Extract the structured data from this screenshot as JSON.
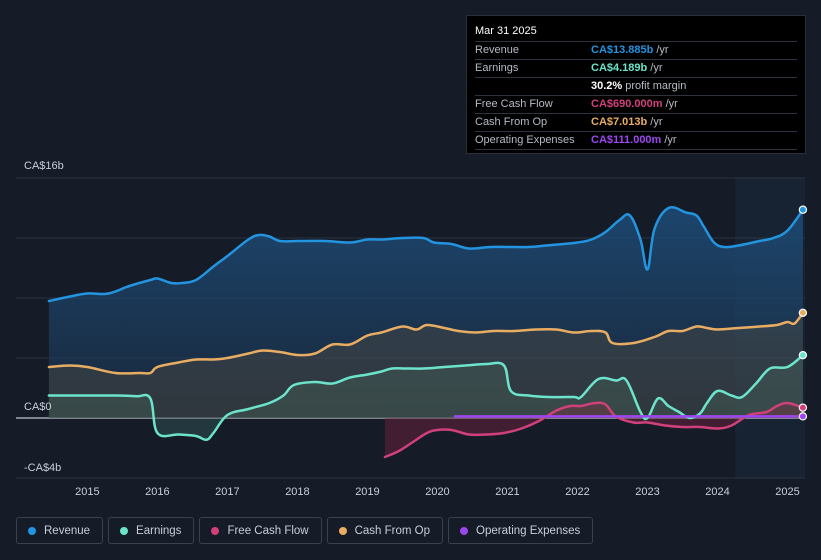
{
  "colors": {
    "background": "#151b27",
    "revenue": "#2394df",
    "earnings": "#6ce4cc",
    "fcf": "#d0407a",
    "cfo": "#e8ad62",
    "opex": "#9d46f0"
  },
  "tooltip": {
    "date": "Mar 31 2025",
    "rows": [
      {
        "label": "Revenue",
        "value": "CA$13.885b",
        "unit": "/yr"
      },
      {
        "label": "Earnings",
        "value": "CA$4.189b",
        "unit": "/yr"
      },
      {
        "label": "",
        "value": "30.2%",
        "unit": "profit margin"
      },
      {
        "label": "Free Cash Flow",
        "value": "CA$690.000m",
        "unit": "/yr"
      },
      {
        "label": "Cash From Op",
        "value": "CA$7.013b",
        "unit": "/yr"
      },
      {
        "label": "Operating Expenses",
        "value": "CA$111.000m",
        "unit": "/yr"
      }
    ]
  },
  "legend": [
    {
      "label": "Revenue",
      "color": "#2394df"
    },
    {
      "label": "Earnings",
      "color": "#6ce4cc"
    },
    {
      "label": "Free Cash Flow",
      "color": "#d0407a"
    },
    {
      "label": "Cash From Op",
      "color": "#e8ad62"
    },
    {
      "label": "Operating Expenses",
      "color": "#9d46f0"
    }
  ],
  "chart_data": {
    "type": "area",
    "unit": "CA$ billions",
    "ylim": [
      -4,
      16
    ],
    "y_tick_labels": [
      {
        "value": 16,
        "label": "CA$16b"
      },
      {
        "value": 0,
        "label": "CA$0"
      },
      {
        "value": -4,
        "label": "-CA$4b"
      }
    ],
    "x_tick_labels": [
      "2015",
      "2016",
      "2017",
      "2018",
      "2019",
      "2020",
      "2021",
      "2022",
      "2023",
      "2024",
      "2025"
    ],
    "x_tick_values": [
      2015,
      2016,
      2017,
      2018,
      2019,
      2020,
      2021,
      2022,
      2023,
      2024,
      2025
    ],
    "xlim": [
      2014.43,
      2025.25
    ],
    "highlight_start": 2024.25,
    "series": [
      {
        "name": "Revenue",
        "key": "revenue",
        "x": [
          2014.45,
          2014.75,
          2015.0,
          2015.3,
          2015.6,
          2015.9,
          2016.0,
          2016.2,
          2016.35,
          2016.55,
          2016.8,
          2017.0,
          2017.3,
          2017.45,
          2017.6,
          2017.75,
          2018.0,
          2018.4,
          2018.75,
          2019.0,
          2019.2,
          2019.5,
          2019.8,
          2019.95,
          2020.2,
          2020.45,
          2020.75,
          2021.0,
          2021.3,
          2021.55,
          2021.8,
          2022.0,
          2022.2,
          2022.4,
          2022.6,
          2022.75,
          2022.9,
          2023.0,
          2023.1,
          2023.3,
          2023.55,
          2023.7,
          2023.8,
          2023.95,
          2024.1,
          2024.3,
          2024.6,
          2024.8,
          2025.0,
          2025.22
        ],
        "values": [
          7.8,
          8.1,
          8.3,
          8.3,
          8.8,
          9.2,
          9.3,
          9.0,
          9.0,
          9.2,
          10.1,
          10.8,
          11.9,
          12.2,
          12.1,
          11.8,
          11.8,
          11.8,
          11.7,
          11.9,
          11.9,
          12.0,
          12.0,
          11.7,
          11.6,
          11.3,
          11.4,
          11.4,
          11.4,
          11.5,
          11.6,
          11.7,
          11.9,
          12.4,
          13.2,
          13.5,
          11.9,
          9.9,
          12.6,
          14.0,
          13.7,
          13.5,
          12.8,
          11.7,
          11.4,
          11.5,
          11.8,
          12.0,
          12.5,
          13.885
        ]
      },
      {
        "name": "Earnings",
        "key": "earnings",
        "x": [
          2014.45,
          2014.75,
          2015.0,
          2015.4,
          2015.7,
          2015.9,
          2016.0,
          2016.3,
          2016.55,
          2016.7,
          2016.8,
          2017.0,
          2017.3,
          2017.6,
          2017.8,
          2017.95,
          2018.25,
          2018.5,
          2018.75,
          2019.0,
          2019.2,
          2019.35,
          2019.55,
          2019.8,
          2020.1,
          2020.4,
          2020.7,
          2020.95,
          2021.05,
          2021.3,
          2021.6,
          2021.95,
          2022.05,
          2022.3,
          2022.55,
          2022.7,
          2022.9,
          2023.0,
          2023.15,
          2023.3,
          2023.45,
          2023.6,
          2023.75,
          2023.85,
          2024.0,
          2024.2,
          2024.35,
          2024.55,
          2024.75,
          2025.0,
          2025.22
        ],
        "values": [
          1.5,
          1.5,
          1.5,
          1.5,
          1.45,
          1.3,
          -1.0,
          -1.1,
          -1.2,
          -1.45,
          -1.0,
          0.2,
          0.6,
          1.0,
          1.5,
          2.2,
          2.4,
          2.3,
          2.7,
          2.9,
          3.1,
          3.3,
          3.3,
          3.3,
          3.4,
          3.5,
          3.6,
          3.5,
          1.8,
          1.5,
          1.4,
          1.4,
          1.4,
          2.6,
          2.5,
          2.5,
          0.4,
          0.0,
          1.3,
          0.8,
          0.4,
          0.0,
          0.3,
          1.0,
          1.8,
          1.5,
          1.4,
          2.3,
          3.3,
          3.4,
          4.189
        ]
      },
      {
        "name": "Free Cash Flow",
        "key": "fcf",
        "x": [
          2019.25,
          2019.45,
          2019.65,
          2019.85,
          2020.0,
          2020.2,
          2020.45,
          2020.7,
          2020.95,
          2021.2,
          2021.45,
          2021.7,
          2021.9,
          2022.05,
          2022.25,
          2022.4,
          2022.55,
          2022.8,
          2023.0,
          2023.25,
          2023.5,
          2023.75,
          2024.0,
          2024.2,
          2024.45,
          2024.7,
          2024.85,
          2025.0,
          2025.22
        ],
        "values": [
          -2.6,
          -2.2,
          -1.6,
          -1.0,
          -0.8,
          -0.8,
          -1.1,
          -1.1,
          -1.0,
          -0.7,
          -0.2,
          0.5,
          0.8,
          0.8,
          1.0,
          0.9,
          0.1,
          -0.3,
          -0.3,
          -0.5,
          -0.6,
          -0.6,
          -0.7,
          -0.5,
          0.2,
          0.4,
          0.8,
          1.0,
          0.69
        ]
      },
      {
        "name": "Cash From Op",
        "key": "cfo",
        "x": [
          2014.45,
          2014.75,
          2015.0,
          2015.4,
          2015.75,
          2015.9,
          2016.0,
          2016.3,
          2016.55,
          2016.8,
          2017.0,
          2017.3,
          2017.5,
          2017.75,
          2018.0,
          2018.25,
          2018.5,
          2018.75,
          2019.0,
          2019.2,
          2019.5,
          2019.7,
          2019.85,
          2020.1,
          2020.3,
          2020.55,
          2020.8,
          2021.1,
          2021.4,
          2021.7,
          2021.95,
          2022.2,
          2022.4,
          2022.5,
          2022.8,
          2023.1,
          2023.3,
          2023.5,
          2023.7,
          2023.85,
          2024.0,
          2024.3,
          2024.6,
          2024.85,
          2025.0,
          2025.1,
          2025.22
        ],
        "values": [
          3.4,
          3.5,
          3.4,
          3.0,
          3.0,
          3.0,
          3.4,
          3.7,
          3.9,
          3.9,
          4.0,
          4.3,
          4.5,
          4.4,
          4.2,
          4.3,
          4.9,
          4.9,
          5.5,
          5.7,
          6.1,
          5.9,
          6.2,
          6.0,
          5.8,
          5.7,
          5.8,
          5.8,
          5.9,
          5.9,
          5.7,
          5.8,
          5.7,
          5.0,
          5.0,
          5.4,
          5.8,
          5.8,
          6.1,
          6.0,
          5.9,
          6.0,
          6.1,
          6.2,
          6.4,
          6.3,
          7.013
        ]
      },
      {
        "name": "Operating Expenses",
        "key": "opex",
        "x": [
          2020.25,
          2020.5,
          2021.0,
          2021.5,
          2022.0,
          2022.5,
          2023.0,
          2023.5,
          2024.0,
          2024.5,
          2025.0,
          2025.22
        ],
        "values": [
          0.111,
          0.111,
          0.111,
          0.111,
          0.111,
          0.111,
          0.111,
          0.111,
          0.111,
          0.111,
          0.111,
          0.111
        ]
      }
    ]
  }
}
